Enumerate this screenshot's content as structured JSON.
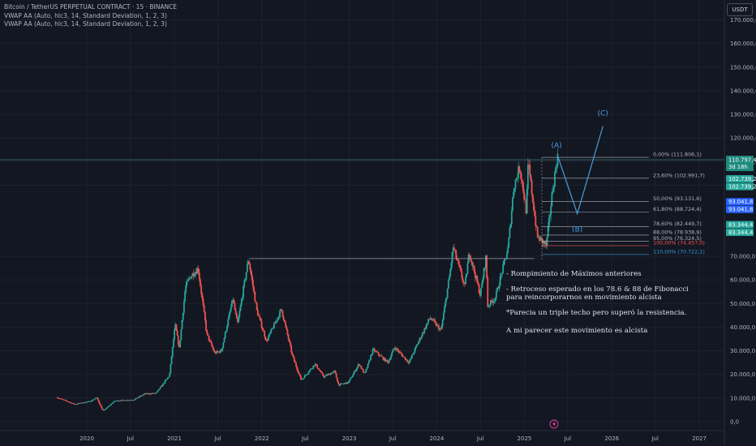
{
  "legend": {
    "symbol": "Bitcoin / TetherUS PERPETUAL CONTRACT · 15 · BINANCE",
    "ind1": "VWAP AA (Auto, hlc3, 14, Standard Deviation, 1, 2, 3)",
    "ind2": "VWAP AA (Auto, hlc3, 14, Standard Deviation, 1, 2, 3)"
  },
  "currency": "USDT",
  "notes": {
    "line1": "- Rompimiento de Máximos anteriores",
    "line2a": "- Retroceso esperado en los 78.6 & 88 de Fibonacci",
    "line2b": "para reincorporarnos en movimiento alcista",
    "line3": "*Parecia un triple techo pero superó la resistencia.",
    "line4": "A mi parecer este movimiento es alcista"
  },
  "colors": {
    "bg": "#131722",
    "up": "#26a69a",
    "down": "#ef5350",
    "grid": "#1e222d",
    "axis_text": "#b2b5be",
    "wave": "#4a9ee0"
  },
  "chart_data": {
    "type": "candlestick",
    "title": "Bitcoin / TetherUS PERPETUAL CONTRACT · 15 · BINANCE",
    "y_axis": {
      "ticks": [
        0,
        10000,
        20000,
        30000,
        40000,
        50000,
        60000,
        70000,
        100000,
        110000,
        120000,
        130000,
        140000,
        150000,
        160000,
        170000
      ],
      "tick_labels": [
        "0,0",
        "10.000,0",
        "20.000,0",
        "30.000,0",
        "40.000,0",
        "50.000,0",
        "60.000,0",
        "70.000,0",
        "100.000,0",
        "110.000,0",
        "120.000,0",
        "130.000,0",
        "140.000,0",
        "150.000,0",
        "160.000,0",
        "170.000,0"
      ],
      "ylim": [
        -1000,
        178000
      ]
    },
    "x_axis": {
      "ticks": [
        "2020-01-01",
        "2020-07-01",
        "2021-01-01",
        "2021-07-01",
        "2022-01-01",
        "2022-07-01",
        "2023-01-01",
        "2023-07-01",
        "2024-01-01",
        "2024-07-01",
        "2025-01-01",
        "2025-07-01",
        "2026-01-01",
        "2026-07-01",
        "2027-01-01"
      ],
      "tick_labels": [
        "2020",
        "Jul",
        "2021",
        "Jul",
        "2022",
        "Jul",
        "2023",
        "Jul",
        "2024",
        "Jul",
        "2025",
        "Jul",
        "2026",
        "Jul",
        "2027"
      ],
      "xlim": [
        "2019-05-01",
        "2027-05-01"
      ]
    },
    "price_path": [
      [
        "2019-09-01",
        10300
      ],
      [
        "2019-11-15",
        7400
      ],
      [
        "2020-01-20",
        8600
      ],
      [
        "2020-02-15",
        10200
      ],
      [
        "2020-03-13",
        4500
      ],
      [
        "2020-05-01",
        8800
      ],
      [
        "2020-07-20",
        9300
      ],
      [
        "2020-09-01",
        11700
      ],
      [
        "2020-10-20",
        12000
      ],
      [
        "2020-12-15",
        19500
      ],
      [
        "2021-01-08",
        41000
      ],
      [
        "2021-01-25",
        31000
      ],
      [
        "2021-02-20",
        57000
      ],
      [
        "2021-03-13",
        61500
      ],
      [
        "2021-04-14",
        64800
      ],
      [
        "2021-05-20",
        37000
      ],
      [
        "2021-06-22",
        29000
      ],
      [
        "2021-07-20",
        30000
      ],
      [
        "2021-09-06",
        52000
      ],
      [
        "2021-09-25",
        41000
      ],
      [
        "2021-11-10",
        69000
      ],
      [
        "2021-12-15",
        47000
      ],
      [
        "2022-01-24",
        34000
      ],
      [
        "2022-03-28",
        47500
      ],
      [
        "2022-05-12",
        28000
      ],
      [
        "2022-06-18",
        17600
      ],
      [
        "2022-08-15",
        24400
      ],
      [
        "2022-09-20",
        19000
      ],
      [
        "2022-11-05",
        21300
      ],
      [
        "2022-11-21",
        15500
      ],
      [
        "2023-01-01",
        16600
      ],
      [
        "2023-02-15",
        24500
      ],
      [
        "2023-03-10",
        20000
      ],
      [
        "2023-04-14",
        30500
      ],
      [
        "2023-06-15",
        25000
      ],
      [
        "2023-07-13",
        31500
      ],
      [
        "2023-09-11",
        25000
      ],
      [
        "2023-10-24",
        34500
      ],
      [
        "2023-12-08",
        44000
      ],
      [
        "2024-01-23",
        38500
      ],
      [
        "2024-02-28",
        62000
      ],
      [
        "2024-03-14",
        73800
      ],
      [
        "2024-05-01",
        57000
      ],
      [
        "2024-05-20",
        71900
      ],
      [
        "2024-07-05",
        53500
      ],
      [
        "2024-07-29",
        70000
      ],
      [
        "2024-08-05",
        49000
      ],
      [
        "2024-09-06",
        52500
      ],
      [
        "2024-10-29",
        73500
      ],
      [
        "2024-11-22",
        99500
      ],
      [
        "2024-12-17",
        108000
      ],
      [
        "2025-01-13",
        89000
      ],
      [
        "2025-01-21",
        109500
      ],
      [
        "2025-02-28",
        78200
      ],
      [
        "2025-04-07",
        74500
      ],
      [
        "2025-05-01",
        96500
      ],
      [
        "2025-05-22",
        111806
      ]
    ],
    "fibonacci": [
      {
        "level": "0,00%",
        "value": 111806.1,
        "label": "0,00% (111.806,1)"
      },
      {
        "level": "23,60%",
        "value": 102991.7,
        "label": "23,60% (102.991,7)"
      },
      {
        "level": "50,00%",
        "value": 93131.6,
        "label": "50,00% (93.131,6)"
      },
      {
        "level": "61,80%",
        "value": 88724.4,
        "label": "61,80% (88.724,4)"
      },
      {
        "level": "78,60%",
        "value": 82449.7,
        "label": "78,60% (82.449,7)"
      },
      {
        "level": "88,00%",
        "value": 78938.9,
        "label": "88,00% (78.938,9)"
      },
      {
        "level": "95,00%",
        "value": 76324.5,
        "label": "95,00% (76.324,5)"
      },
      {
        "level": "100,00%",
        "value": 74457.0,
        "label": "100,00% (74.457,0)"
      },
      {
        "level": "110,00%",
        "value": 70722.1,
        "label": "110,00% (70.722,1)"
      }
    ],
    "resistance_line": {
      "value": 69000,
      "from": "2021-11-10",
      "to": "2025-01-21"
    },
    "current_price": {
      "value": 110797.4,
      "label": "110.797,4",
      "countdown": "3d 18h"
    },
    "price_badges": [
      {
        "value": 102739.2,
        "label": "102.739,2",
        "color": "#26a69a"
      },
      {
        "value": 102739.2,
        "label": "102.739,2",
        "color": "#26a69a"
      },
      {
        "value": 93041.8,
        "label": "93.041,8",
        "color": "#2962ff"
      },
      {
        "value": 93041.8,
        "label": "93.041,8",
        "color": "#2962ff"
      },
      {
        "value": 83344.4,
        "label": "83.344,4",
        "color": "#26a69a"
      },
      {
        "value": 83344.4,
        "label": "83.344,4",
        "color": "#26a69a"
      }
    ],
    "elliott_wave": [
      {
        "label": "(A)",
        "date": "2025-05-22",
        "value": 111806
      },
      {
        "label": "(B)",
        "date": "2025-08-10",
        "value": 88000
      },
      {
        "label": "(C)",
        "date": "2025-11-25",
        "value": 125000
      }
    ]
  }
}
